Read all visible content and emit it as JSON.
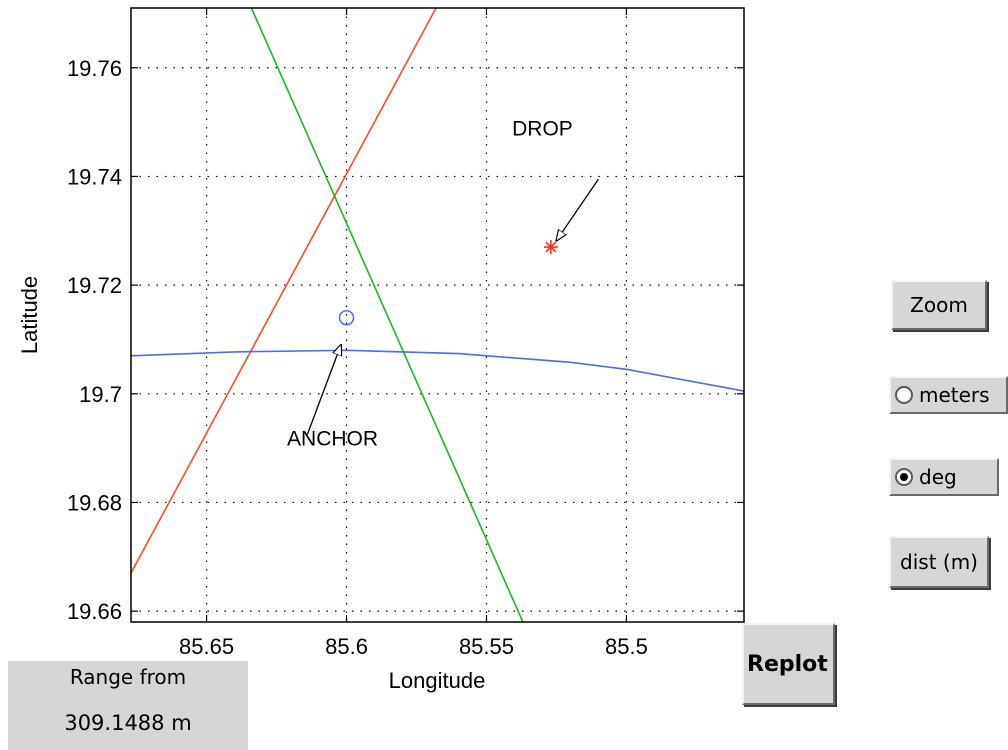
{
  "controls": {
    "zoom_label": "Zoom",
    "radio_meters": {
      "label": "meters",
      "checked": false
    },
    "radio_deg": {
      "label": "deg",
      "checked": true
    },
    "dist_label": "dist (m)",
    "replot_label": "Replot",
    "range_label": "Range from",
    "range_value": "309.1488 m"
  },
  "chart_data": {
    "type": "line",
    "xlabel": "Longitude",
    "ylabel": "Latitude",
    "xlim": [
      85.677,
      85.458
    ],
    "ylim": [
      19.658,
      19.771
    ],
    "x_reversed": true,
    "grid": true,
    "xticks": [
      85.65,
      85.6,
      85.55,
      85.5
    ],
    "xtick_labels": [
      "85.65",
      "85.6",
      "85.55",
      "85.5"
    ],
    "yticks": [
      19.66,
      19.68,
      19.7,
      19.72,
      19.74,
      19.76
    ],
    "ytick_labels": [
      "19.66",
      "19.68",
      "19.7",
      "19.72",
      "19.74",
      "19.76"
    ],
    "series": [
      {
        "color": "#ff4a2a",
        "x": [
          85.677,
          85.568
        ],
        "y": [
          19.667,
          19.771
        ]
      },
      {
        "color": "#22b522",
        "x": [
          85.634,
          85.537
        ],
        "y": [
          19.771,
          19.658
        ]
      },
      {
        "color": "#4a6cf0",
        "x": [
          85.677,
          85.64,
          85.6,
          85.56,
          85.52,
          85.5,
          85.458
        ],
        "y": [
          19.707,
          19.7077,
          19.708,
          19.7074,
          19.7058,
          19.7045,
          19.7005
        ]
      }
    ],
    "points": [
      {
        "name": "ANCHOR",
        "x": 85.6,
        "y": 19.714,
        "marker": "circle",
        "color": "#4a6cf0"
      },
      {
        "name": "DROP",
        "x": 85.527,
        "y": 19.727,
        "marker": "asterisk",
        "color": "#ff3010"
      }
    ],
    "annotations": [
      {
        "text": "DROP",
        "text_x": 85.53,
        "text_y": 19.7475,
        "arrow_from": [
          85.51,
          19.7395
        ],
        "arrow_to": [
          85.525,
          19.7282
        ]
      },
      {
        "text": "ANCHOR",
        "text_x": 85.605,
        "text_y": 19.6905,
        "arrow_from": [
          85.614,
          19.6925
        ],
        "arrow_to": [
          85.602,
          19.709
        ]
      }
    ]
  }
}
